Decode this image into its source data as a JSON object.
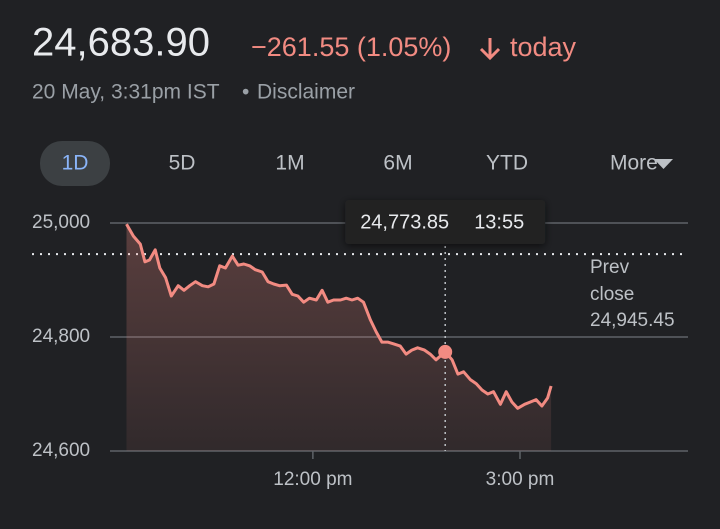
{
  "header": {
    "price": "24,683.90",
    "change": "−261.55 (1.05%)",
    "period": "today",
    "timestamp": "20 May, 3:31pm IST",
    "separator": "•",
    "disclaimer": "Disclaimer"
  },
  "tabs": [
    "1D",
    "5D",
    "1M",
    "6M",
    "YTD",
    "More"
  ],
  "selected_tab": "1D",
  "chart_data": {
    "type": "line",
    "x": [
      558,
      564,
      570,
      574,
      578,
      583,
      587,
      592,
      597,
      603,
      608,
      613,
      618,
      624,
      629,
      634,
      639,
      644,
      650,
      655,
      660,
      665,
      670,
      676,
      681,
      686,
      691,
      697,
      702,
      707,
      712,
      717,
      723,
      728,
      733,
      738,
      744,
      749,
      754,
      759,
      764,
      770,
      775,
      780,
      785,
      790,
      796,
      801,
      806,
      811,
      817,
      822,
      827,
      835,
      841,
      846,
      851,
      857,
      862,
      867,
      872,
      877,
      883,
      888,
      893,
      898,
      904,
      909,
      914,
      919,
      924,
      927
    ],
    "series": [
      {
        "color": "#f28b82",
        "values": [
          24998,
          24977,
          24963,
          24932,
          24935,
          24953,
          24921,
          24904,
          24872,
          24890,
          24882,
          24890,
          24897,
          24890,
          24888,
          24893,
          24925,
          24921,
          24942,
          24926,
          24928,
          24925,
          24918,
          24914,
          24897,
          24893,
          24890,
          24891,
          24875,
          24872,
          24861,
          24868,
          24865,
          24882,
          24861,
          24865,
          24865,
          24868,
          24865,
          24868,
          24861,
          24830,
          24809,
          24791,
          24791,
          24788,
          24784,
          24770,
          24777,
          24781,
          24777,
          24770,
          24760,
          24773.85,
          24760,
          24735,
          24739,
          24725,
          24718,
          24707,
          24700,
          24704,
          24682,
          24704,
          24686,
          24675,
          24682,
          24686,
          24690,
          24679,
          24693,
          24714
        ]
      }
    ],
    "xlim": [
      555,
      1046
    ],
    "xticks": [
      {
        "value": 720,
        "label": "12:00 pm"
      },
      {
        "value": 900,
        "label": "3:00 pm"
      }
    ],
    "ylim": [
      24600,
      25000
    ],
    "yticks": [
      {
        "value": 24600,
        "label": "24,600"
      },
      {
        "value": 24800,
        "label": "24,800"
      },
      {
        "value": 25000,
        "label": "25,000"
      }
    ],
    "grid": true,
    "reference_line": {
      "title": [
        "Prev",
        "close"
      ],
      "value": 24945.45,
      "label": "24,945.45"
    },
    "tooltip": {
      "value": 24773.85,
      "value_label": "24,773.85",
      "x": 835,
      "x_label": "13:55"
    }
  }
}
